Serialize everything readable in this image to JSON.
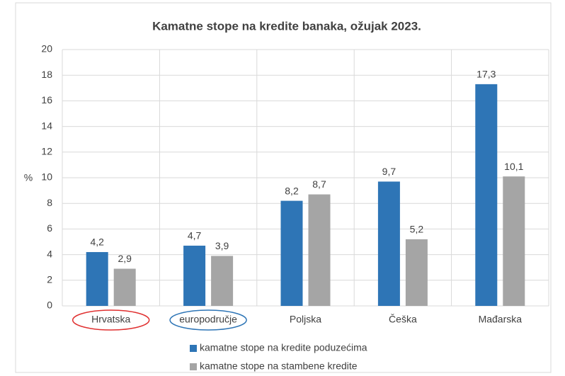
{
  "chart_data": {
    "type": "bar",
    "title": "Kamatne stope na kredite banaka, ožujak 2023.",
    "y_label": "%",
    "categories": [
      "Hrvatska",
      "europodručje",
      "Poljska",
      "Češka",
      "Mađarska"
    ],
    "series": [
      {
        "name": "kamatne stope na kredite poduzećima",
        "color": "#2e75b6",
        "values": [
          4.2,
          4.7,
          8.2,
          9.7,
          17.3
        ],
        "value_labels": [
          "4,2",
          "4,7",
          "8,2",
          "9,7",
          "17,3"
        ]
      },
      {
        "name": "kamatne stope na stambene kredite",
        "color": "#a5a5a5",
        "values": [
          2.9,
          3.9,
          8.7,
          5.2,
          10.1
        ],
        "value_labels": [
          "2,9",
          "3,9",
          "8,7",
          "5,2",
          "10,1"
        ]
      }
    ],
    "ylim": [
      0,
      20
    ],
    "yticks": [
      0,
      2,
      4,
      6,
      8,
      10,
      12,
      14,
      16,
      18,
      20
    ],
    "grid": true,
    "legend": "bottom"
  }
}
